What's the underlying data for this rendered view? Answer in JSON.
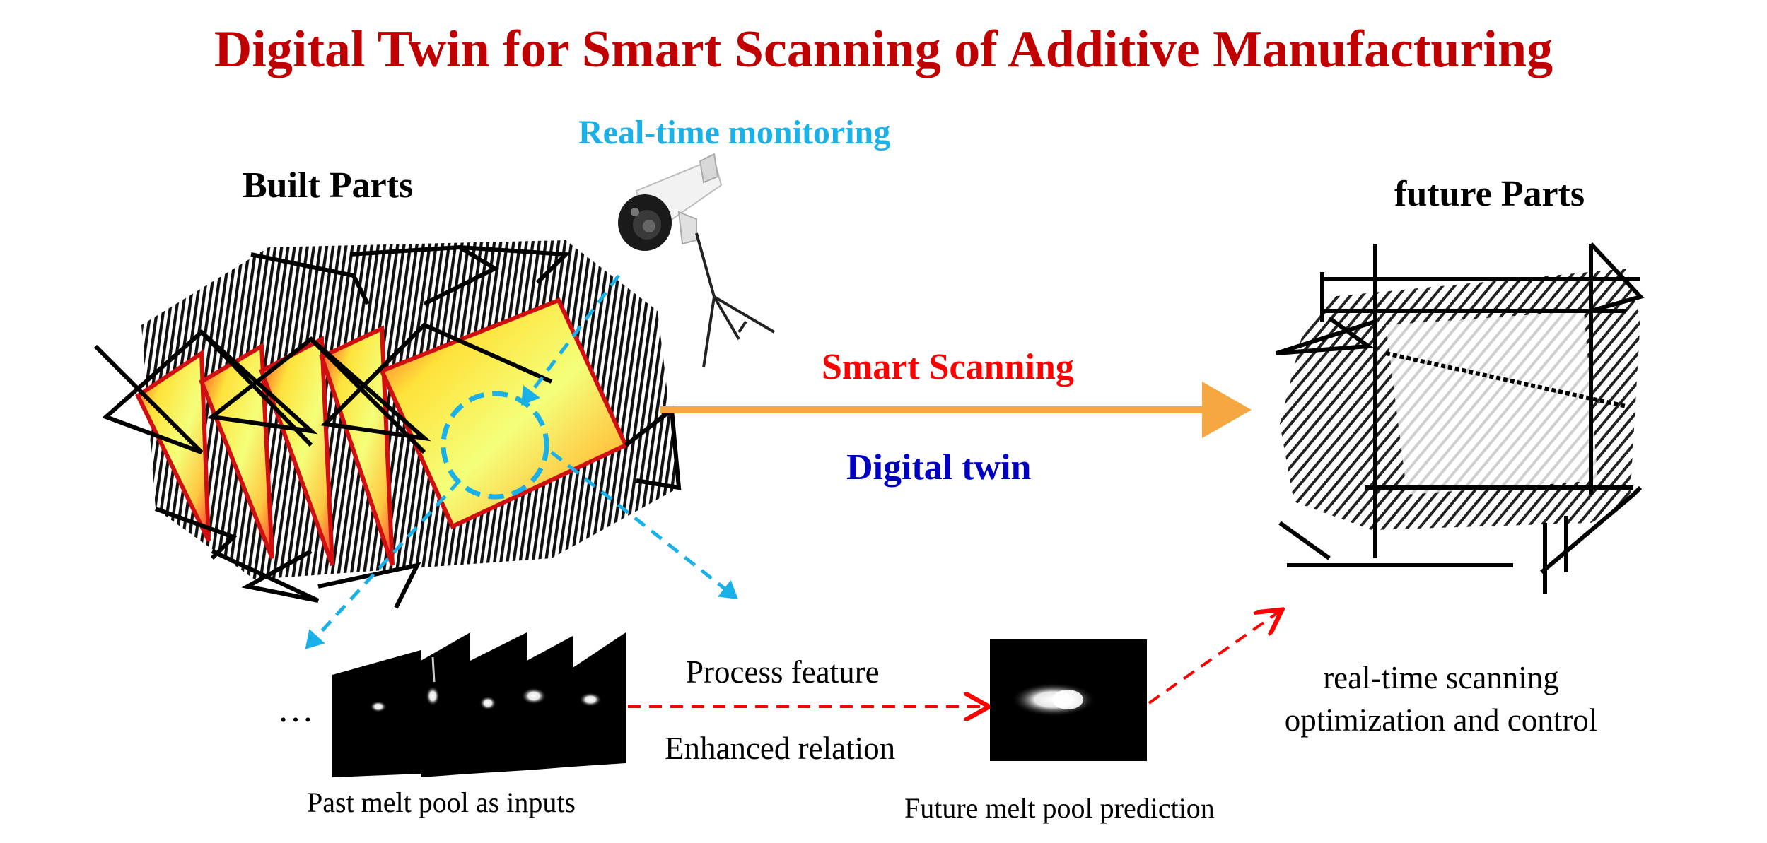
{
  "title": "Digital Twin for Smart Scanning of Additive Manufacturing",
  "monitoring_label": "Real-time monitoring",
  "built_parts_label": "Built Parts",
  "future_parts_label": "future Parts",
  "smart_scanning_label": "Smart Scanning",
  "digital_twin_label": "Digital twin",
  "process_feature_label": "Process feature",
  "enhanced_relation_label": "Enhanced relation",
  "past_melt_pool_label": "Past melt pool as inputs",
  "future_melt_pool_label": "Future melt pool prediction",
  "control_label_line1": "real-time scanning",
  "control_label_line2": "optimization and control",
  "ellipsis": "…",
  "colors": {
    "title": "#c00000",
    "monitoring": "#1ab0e8",
    "smart_scanning": "#ff0000",
    "digital_twin": "#0000c0",
    "main_arrow": "#f5a742",
    "dashed_red": "#ff0000",
    "dashed_blue": "#1ab0e8"
  },
  "icons": [
    "camera-icon",
    "tripod-icon"
  ]
}
